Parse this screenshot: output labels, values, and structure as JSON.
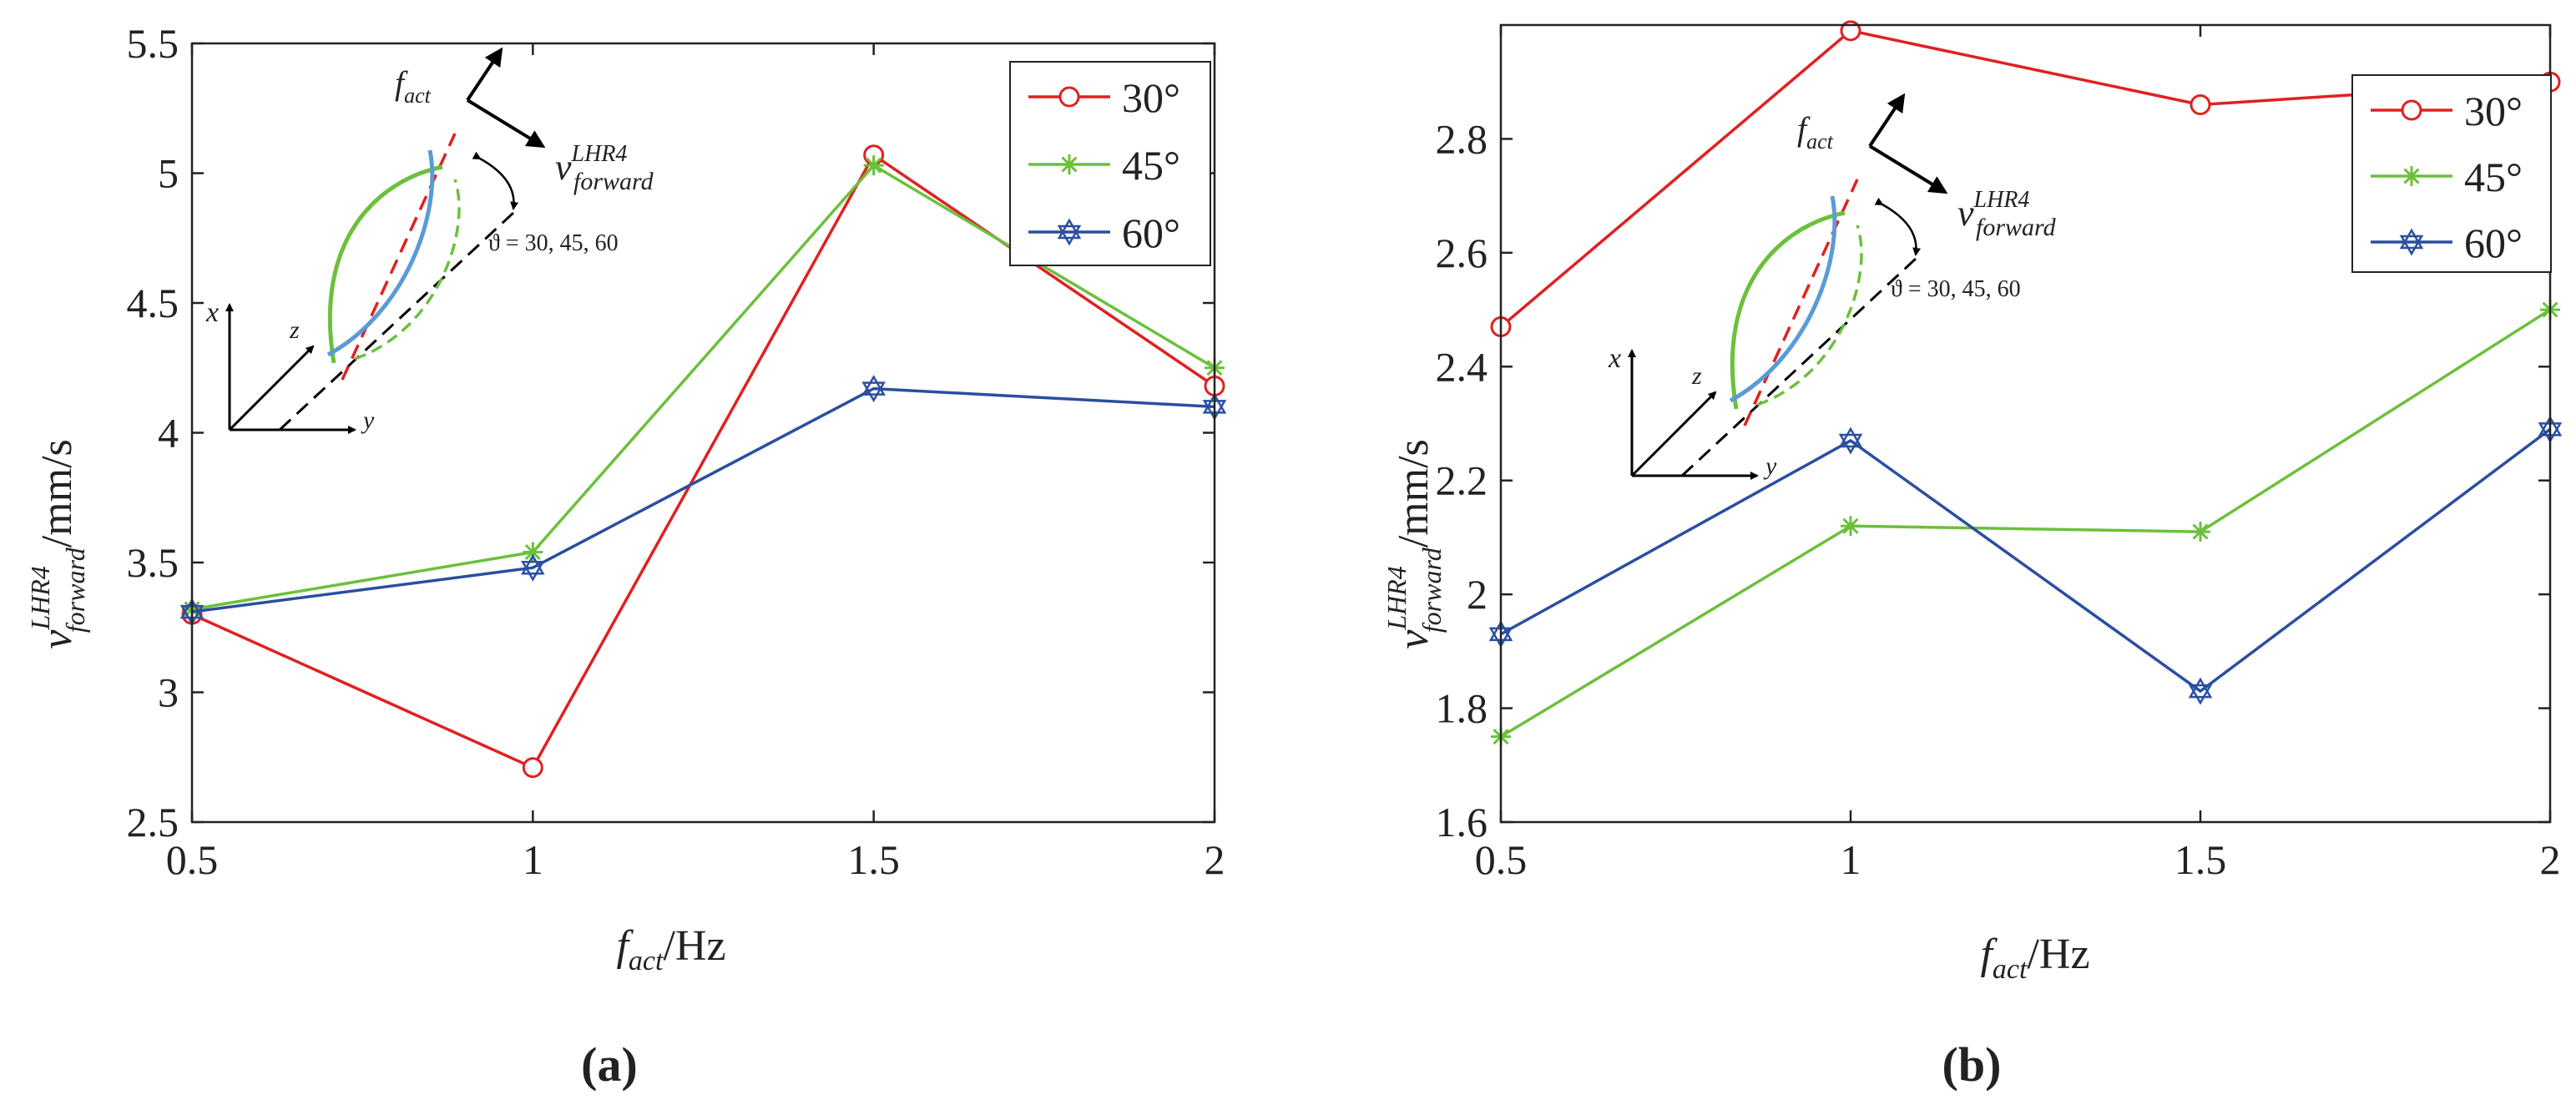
{
  "colors": {
    "s30": "#e02020",
    "s45": "#6cc03c",
    "s60": "#2a4fa0",
    "axis": "#222222",
    "arc_blue": "#5b9bd5"
  },
  "chart_data": [
    {
      "id": "a",
      "type": "line",
      "panel_label": "(a)",
      "x": [
        0.5,
        1,
        1.5,
        2
      ],
      "xticks": [
        "0.5",
        "1",
        "1.5",
        "2"
      ],
      "xlim": [
        0.5,
        2
      ],
      "ylim": [
        2.5,
        5.5
      ],
      "yticks": [
        "2.5",
        "3",
        "3.5",
        "4",
        "4.5",
        "5",
        "5.5"
      ],
      "ytick_values": [
        2.5,
        3,
        3.5,
        4,
        4.5,
        5,
        5.5
      ],
      "xlabel": {
        "main": "f",
        "sub": "act",
        "unit": "/Hz"
      },
      "ylabel": {
        "main": "v",
        "sub": "forward",
        "sup": "LHR4",
        "unit": "/mm/s"
      },
      "legend_position": "top-right",
      "series": [
        {
          "name": "30°",
          "marker": "circle",
          "color_key": "s30",
          "values": [
            3.3,
            2.71,
            5.07,
            4.18
          ]
        },
        {
          "name": "45°",
          "marker": "asterisk",
          "color_key": "s45",
          "values": [
            3.32,
            3.54,
            5.03,
            4.25
          ]
        },
        {
          "name": "60°",
          "marker": "hexagram",
          "color_key": "s60",
          "values": [
            3.31,
            3.48,
            4.17,
            4.1
          ]
        }
      ],
      "inset": {
        "f_main": "f",
        "f_sub": "act",
        "v_main": "v",
        "v_sub": "forward",
        "v_sup": "LHR4",
        "angle_text": "ϑ = 30, 45, 60",
        "axis_x": "x",
        "axis_y": "y",
        "axis_z": "z"
      }
    },
    {
      "id": "b",
      "type": "line",
      "panel_label": "(b)",
      "x": [
        0.5,
        1,
        1.5,
        2
      ],
      "xticks": [
        "0.5",
        "1",
        "1.5",
        "2"
      ],
      "xlim": [
        0.5,
        2
      ],
      "ylim": [
        1.6,
        3.0
      ],
      "yticks": [
        "1.6",
        "1.8",
        "2",
        "2.2",
        "2.4",
        "2.6",
        "2.8"
      ],
      "ytick_values": [
        1.6,
        1.8,
        2.0,
        2.2,
        2.4,
        2.6,
        2.8
      ],
      "xlabel": {
        "main": "f",
        "sub": "act",
        "unit": "/Hz"
      },
      "ylabel": {
        "main": "v",
        "sub": "forward",
        "sup": "LHR4",
        "unit": "/mm/s"
      },
      "legend_position": "top-right",
      "series": [
        {
          "name": "30°",
          "marker": "circle",
          "color_key": "s30",
          "values": [
            2.47,
            2.99,
            2.86,
            2.9
          ]
        },
        {
          "name": "45°",
          "marker": "asterisk",
          "color_key": "s45",
          "values": [
            1.75,
            2.12,
            2.11,
            2.5
          ]
        },
        {
          "name": "60°",
          "marker": "hexagram",
          "color_key": "s60",
          "values": [
            1.93,
            2.27,
            1.83,
            2.29
          ]
        }
      ],
      "inset": {
        "f_main": "f",
        "f_sub": "act",
        "v_main": "v",
        "v_sub": "forward",
        "v_sup": "LHR4",
        "angle_text": "ϑ = 30, 45, 60",
        "axis_x": "x",
        "axis_y": "y",
        "axis_z": "z"
      }
    }
  ]
}
